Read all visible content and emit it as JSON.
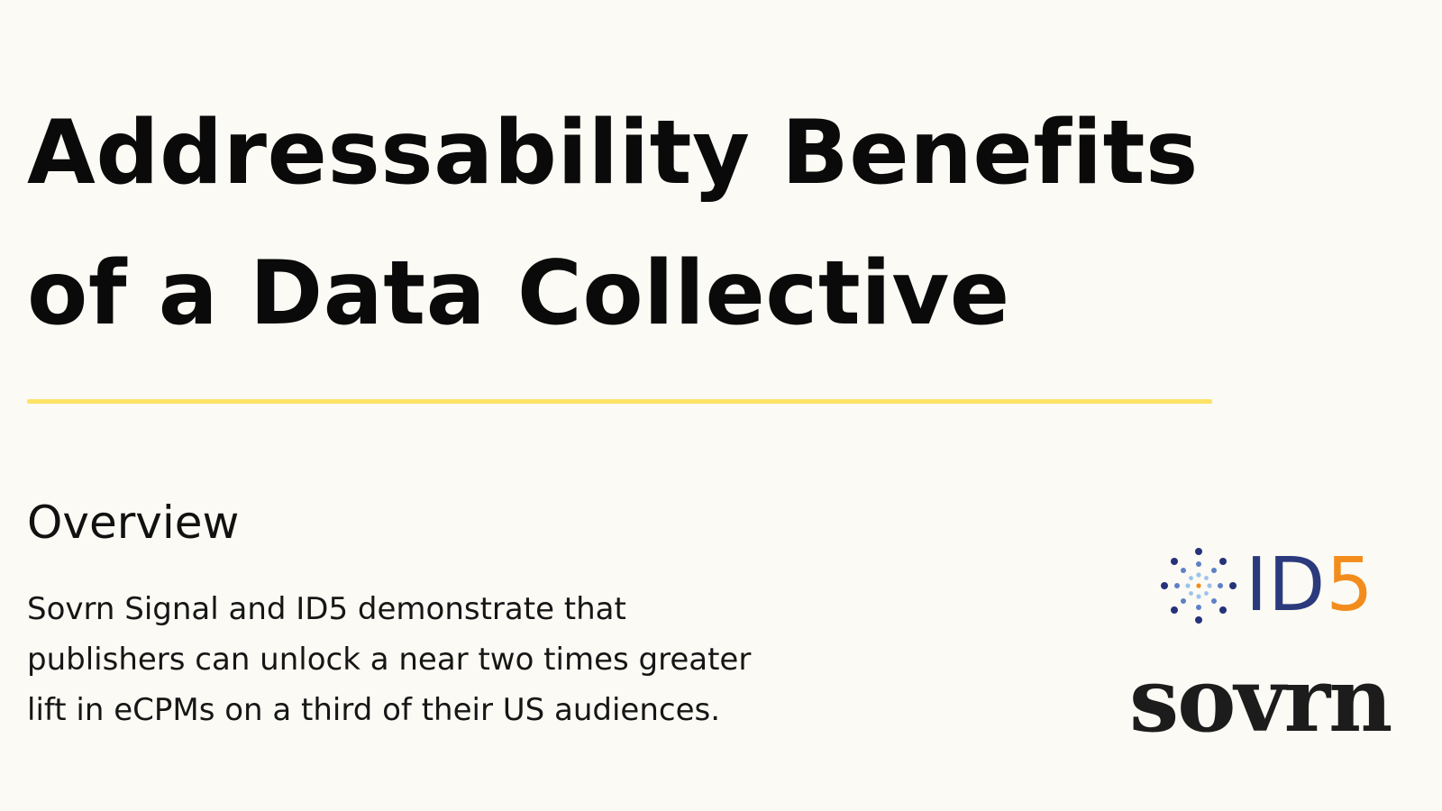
{
  "title": {
    "line1": "Addressability Benefits",
    "line2": "of a Data Collective"
  },
  "overview": {
    "heading": "Overview",
    "lines": [
      "Sovrn Signal and ID5 demonstrate that",
      "publishers can unlock a near two times greater",
      "lift in eCPMs on a third of their US audiences."
    ]
  },
  "logos": {
    "id5": {
      "prefix": "ID",
      "suffix": "5"
    },
    "sovrn": "sovrn"
  },
  "colors": {
    "background": "#fbfaf4",
    "divider": "#fde266",
    "id5_blue": "#2b3a7c",
    "id5_orange": "#f28c1c",
    "text": "#0a0a0a"
  }
}
